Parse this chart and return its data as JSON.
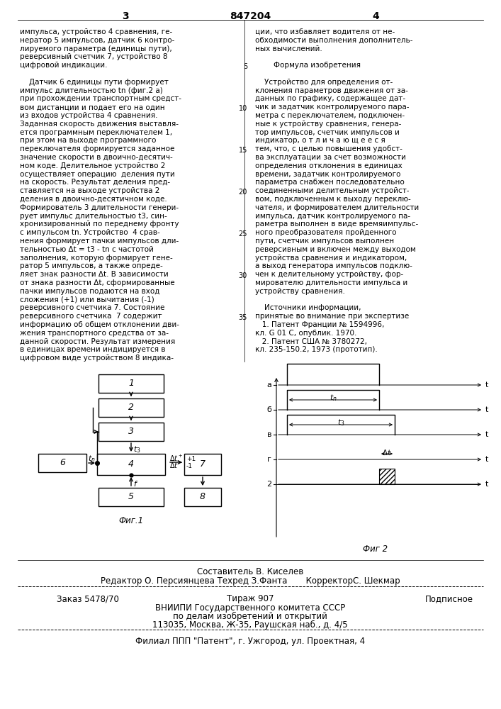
{
  "bg_color": "#ffffff",
  "text_color": "#000000",
  "page_num_left": "3",
  "page_num_center": "847204",
  "page_num_right": "4",
  "left_col_lines": [
    "импульса, устройство 4 сравнения, ге-",
    "нератор 5 импульсов, датчик 6 контро-",
    "лируемого параметра (единицы пути),",
    "реверсивный счетчик 7, устройство 8",
    "цифровой индикации.",
    "",
    "    Датчик 6 единицы пути формирует",
    "импульс длительностью tn (фиг.2 а)",
    "при прохождении транспортным средст-",
    "вом дистанции и подает его на один",
    "из входов устройства 4 сравнения.",
    "Заданная скорость движения выставля-",
    "ется программным переключателем 1,",
    "при этом на выходе программного",
    "переключателя формируется заданное",
    "значение скорости в двоично-десятич-",
    "ном коде. Делительное устройство 2",
    "осуществляет операцию  деления пути",
    "на скорость. Результат деления пред-",
    "ставляется на выходе устройства 2",
    "деления в двоично-десятичном коде.",
    "Формирователь 3 длительности генери-",
    "рует импульс длительностью t3, син-",
    "хронизированный по переднему фронту",
    "с импульсом tn. Устройство  4 срав-",
    "нения формирует пачки импульсов дли-",
    "тельностью Δt = t3 - tn с частотой",
    "заполнения, которую формирует гене-",
    "ратор 5 импульсов, а также опреде-",
    "ляет знак разности Δt. В зависимости",
    "от знака разности Δt, сформированные",
    "пачки импульсов подаются на вход",
    "сложения (+1) или вычитания (-1)",
    "реверсивного счетчика 7. Состояние",
    "реверсивного счетчика  7 содержит",
    "информацию об общем отклонении дви-",
    "жения транспортного средства от за-",
    "данной скорости. Результат измерения",
    "в единицах времени индицируется в",
    "цифровом виде устройством 8 индика-"
  ],
  "right_col_lines": [
    "ции, что избавляет водителя от не-",
    "обходимости выполнения дополнитель-",
    "ных вычислений.",
    "",
    "        Формула изобретения",
    "",
    "    Устройство для определения от-",
    "клонения параметров движения от за-",
    "данных по графику, содержащее дат-",
    "чик и задатчик контролируемого пара-",
    "метра с переключателем, подключен-",
    "ные к устройству сравнения, генера-",
    "тор импульсов, счетчик импульсов и",
    "индикатор, о т л и ч а ю щ е е с я",
    "тем, что, с целью повышения удобст-",
    "ва эксплуатации за счет возможности",
    "определения отклонения в единицах",
    "времени, задатчик контролируемого",
    "параметра снабжен последовательно",
    "соединенными делительным устройст-",
    "вом, подключенным к выходу переклю-",
    "чателя, и формирователем длительности",
    "импульса, датчик контролируемого па-",
    "раметра выполнен в виде времяимпульс-",
    "ного преобразователя пройденного",
    "пути, счетчик импульсов выполнен",
    "реверсивным и включен между выходом",
    "устройства сравнения и индикатором,",
    "а выход генератора импульсов подклю-",
    "чен к делительному устройству, фор-",
    "мирователю длительности импульса и",
    "устройству сравнения.",
    "",
    "    Источники информации,",
    "принятые во внимание при экспертизе",
    "   1. Патент Франции № 1594996,",
    "кл. G 01 С, опублик. 1970.",
    "   2. Патент США № 3780272,",
    "кл. 235-150.2, 1973 (прототип)."
  ],
  "line_numbers": [
    5,
    10,
    15,
    20,
    25,
    30,
    35
  ],
  "fig1_caption": "Фиг.1",
  "fig2_caption": "Фиг 2",
  "footer_author": "Составитель В. Киселев",
  "footer_editors": "Редактор О. Персиянцева Техред З.Фанта       КорректорС. Шекмар",
  "footer_order": "Заказ 5478/70",
  "footer_tirage": "Тираж 907",
  "footer_type": "Подписное",
  "footer_org1": "ВНИИПИ Государственного комитета СССР",
  "footer_org2": "по делам изобретений и открытий",
  "footer_org3": "113035, Москва, Ж-35, Раушская наб., д. 4/5",
  "footer_branch": "Филиал ППП \"Патент\", г. Ужгород, ул. Проектная, 4"
}
